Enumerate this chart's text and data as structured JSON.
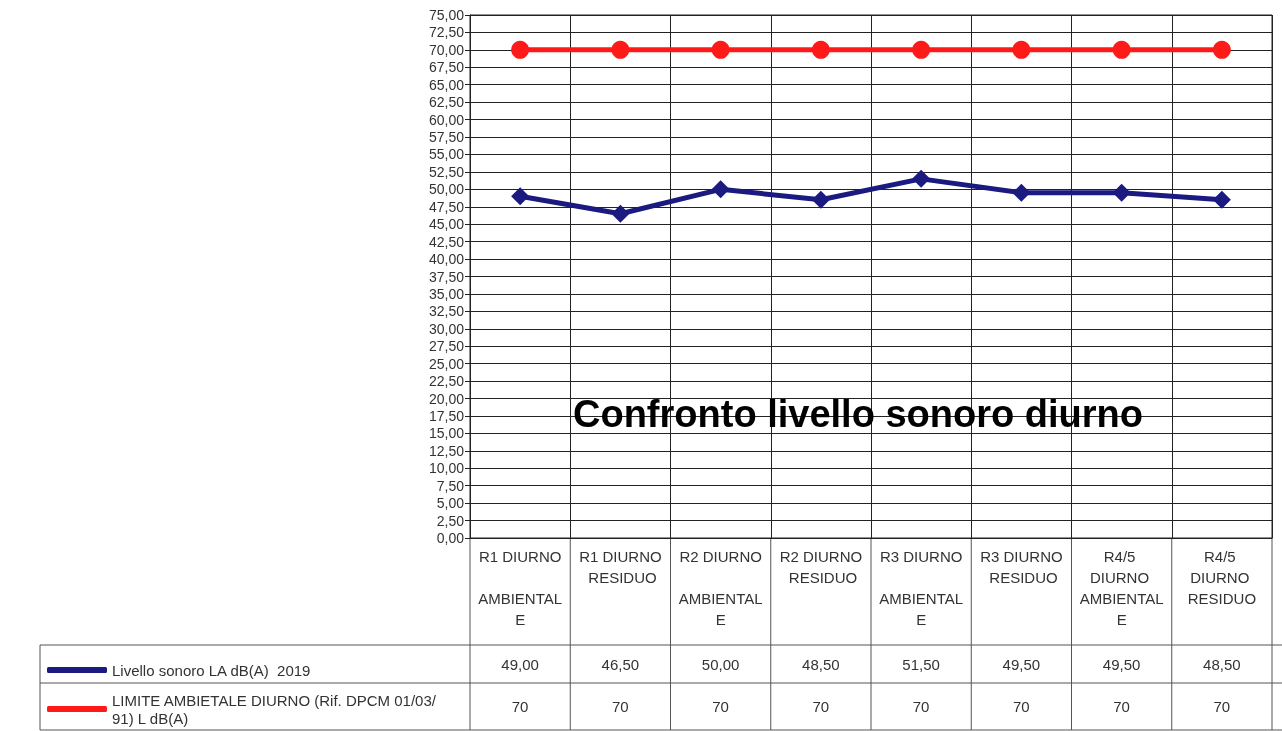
{
  "chart_data": {
    "type": "line",
    "title": "Confronto livello sonoro diurno",
    "categories": [
      "R1 DIURNO AMBIENTALE",
      "R1 DIURNO RESIDUO",
      "R2 DIURNO AMBIENTALE",
      "R2 DIURNO RESIDUO",
      "R3 DIURNO AMBIENTALE",
      "R3 DIURNO RESIDUO",
      "R4/5 DIURNO AMBIENTALE",
      "R4/5 DIURNO RESIDUO"
    ],
    "series": [
      {
        "name": "Livello sonoro LA dB(A)  2019",
        "color": "#1a1a80",
        "marker": "diamond",
        "values": [
          49,
          46.5,
          50,
          48.5,
          51.5,
          49.5,
          49.5,
          48.5
        ],
        "value_labels": [
          "49,00",
          "46,50",
          "50,00",
          "48,50",
          "51,50",
          "49,50",
          "49,50",
          "48,50"
        ]
      },
      {
        "name": "LIMITE AMBIETALE DIURNO (Rif. DPCM 01/03/91) L dB(A)",
        "color": "#ff1a1a",
        "marker": "circle",
        "values": [
          70,
          70,
          70,
          70,
          70,
          70,
          70,
          70
        ],
        "value_labels": [
          "70",
          "70",
          "70",
          "70",
          "70",
          "70",
          "70",
          "70"
        ]
      }
    ],
    "ylim": [
      0,
      75
    ],
    "yticks": [
      {
        "value": 0,
        "label": "0,00"
      },
      {
        "value": 2.5,
        "label": "2,50"
      },
      {
        "value": 5,
        "label": "5,00"
      },
      {
        "value": 7.5,
        "label": "7,50"
      },
      {
        "value": 10,
        "label": "10,00"
      },
      {
        "value": 12.5,
        "label": "12,50"
      },
      {
        "value": 15,
        "label": "15,00"
      },
      {
        "value": 17.5,
        "label": "17,50"
      },
      {
        "value": 20,
        "label": "20,00"
      },
      {
        "value": 22.5,
        "label": "22,50"
      },
      {
        "value": 25,
        "label": "25,00"
      },
      {
        "value": 27.5,
        "label": "27,50"
      },
      {
        "value": 30,
        "label": "30,00"
      },
      {
        "value": 32.5,
        "label": "32,50"
      },
      {
        "value": 35,
        "label": "35,00"
      },
      {
        "value": 37.5,
        "label": "37,50"
      },
      {
        "value": 40,
        "label": "40,00"
      },
      {
        "value": 42.5,
        "label": "42,50"
      },
      {
        "value": 45,
        "label": "45,00"
      },
      {
        "value": 47.5,
        "label": "47,50"
      },
      {
        "value": 50,
        "label": "50,00"
      },
      {
        "value": 52.5,
        "label": "52,50"
      },
      {
        "value": 55,
        "label": "55,00"
      },
      {
        "value": 57.5,
        "label": "57,50"
      },
      {
        "value": 60,
        "label": "60,00"
      },
      {
        "value": 62.5,
        "label": "62,50"
      },
      {
        "value": 65,
        "label": "65,00"
      },
      {
        "value": 67.5,
        "label": "67,50"
      },
      {
        "value": 70,
        "label": "70,00"
      },
      {
        "value": 72.5,
        "label": "72,50"
      },
      {
        "value": 75,
        "label": "75,00"
      }
    ],
    "grid": true,
    "legend": "bottom left",
    "line_style": "solid"
  }
}
